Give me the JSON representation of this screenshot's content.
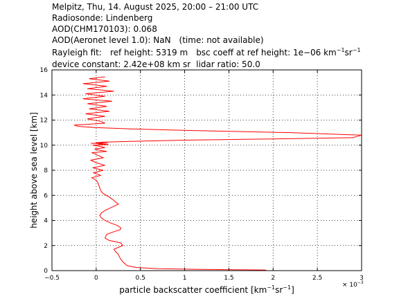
{
  "header": {
    "line1": "Melpitz, Thu, 14. August 2025, 20:00 – 21:00 UTC",
    "line2": "Radiosonde: Lindenberg",
    "line3": "AOD(CHM170103): 0.068",
    "line4_a": "AOD(Aeronet level 1.0): NaN",
    "line4_b": "(time: not available)",
    "rayleigh_label": "Rayleigh fit:",
    "ref_height": "ref height: 5319 m",
    "bsc_coeff_prefix": "bsc coeff at ref height: 1e−06 km",
    "bsc_exp1": "−1",
    "bsc_mid": "sr",
    "bsc_exp2": "−1",
    "device_constant": "device constant: 2.42e+08 km sr",
    "lidar_ratio": "lidar ratio: 50.0"
  },
  "chart_data": {
    "type": "line",
    "xlabel_prefix": "particle backscatter coefficient [km",
    "xlabel_exp1": "−1",
    "xlabel_mid": "sr",
    "xlabel_exp2": "−1",
    "xlabel_suffix": "]",
    "ylabel": "height above sea level [km]",
    "x_multiplier_label": "× 10",
    "x_multiplier_exp": "−3",
    "xlim": [
      -0.5,
      3.0
    ],
    "ylim": [
      0,
      16
    ],
    "xticks": [
      "−0.5",
      "0",
      "0.5",
      "1",
      "1.5",
      "2",
      "2.5",
      "3"
    ],
    "yticks": [
      "0",
      "2",
      "4",
      "6",
      "8",
      "10",
      "12",
      "14",
      "16"
    ],
    "grid": true,
    "series_color": "#ff0000",
    "series": [
      {
        "x": [
          1.92,
          1.2,
          0.7,
          0.45,
          0.35,
          0.3,
          0.27,
          0.25,
          0.22,
          0.2,
          0.25,
          0.3,
          0.28,
          0.22,
          0.15,
          0.1,
          0.12,
          0.2,
          0.27,
          0.28,
          0.24,
          0.16,
          0.1,
          0.06,
          0.04,
          0.06,
          0.1,
          0.16,
          0.22,
          0.25,
          0.22,
          0.2,
          0.17,
          0.14,
          0.1,
          0.07,
          0.05,
          0.04,
          0.03,
          0.02,
          0.0,
          -0.05,
          0.05,
          -0.03,
          0.08,
          -0.04,
          0.1,
          0.0,
          -0.06,
          0.08,
          0.02,
          -0.05,
          0.12,
          0.03,
          -0.02,
          0.1,
          0.05,
          -0.04,
          0.14,
          0.02,
          0.07,
          -0.06,
          0.13,
          0.0,
          0.1,
          0.4,
          1.0,
          2.0,
          2.9,
          3.0,
          2.2,
          1.5,
          0.9,
          0.4,
          0.0,
          -0.2,
          -0.25,
          0.1,
          0.05,
          -0.1,
          0.1,
          -0.12,
          0.15,
          -0.08,
          0.12,
          -0.1,
          0.18,
          -0.15,
          0.1,
          -0.12,
          0.2,
          -0.1,
          0.12,
          -0.15,
          0.15,
          -0.08,
          0.1
        ],
        "y": [
          0.05,
          0.1,
          0.15,
          0.25,
          0.4,
          0.7,
          1.0,
          1.3,
          1.5,
          1.7,
          1.85,
          2.0,
          2.2,
          2.3,
          2.4,
          2.6,
          2.9,
          3.1,
          3.25,
          3.4,
          3.6,
          3.8,
          4.0,
          4.2,
          4.4,
          4.6,
          4.8,
          5.0,
          5.2,
          5.3,
          5.45,
          5.6,
          5.75,
          5.9,
          6.05,
          6.2,
          6.4,
          6.6,
          6.8,
          7.0,
          7.2,
          7.4,
          7.6,
          7.8,
          8.0,
          8.2,
          8.4,
          8.6,
          8.8,
          9.0,
          9.2,
          9.4,
          9.5,
          9.6,
          9.7,
          9.8,
          9.9,
          10.0,
          10.05,
          10.1,
          10.12,
          10.15,
          10.17,
          10.2,
          10.25,
          10.3,
          10.4,
          10.5,
          10.6,
          10.8,
          11.0,
          11.1,
          11.2,
          11.3,
          11.4,
          11.5,
          11.6,
          11.75,
          11.9,
          12.1,
          12.3,
          12.5,
          12.7,
          12.9,
          13.1,
          13.3,
          13.5,
          13.7,
          13.9,
          14.1,
          14.3,
          14.5,
          14.7,
          14.9,
          15.1,
          15.3,
          15.45
        ]
      }
    ]
  }
}
